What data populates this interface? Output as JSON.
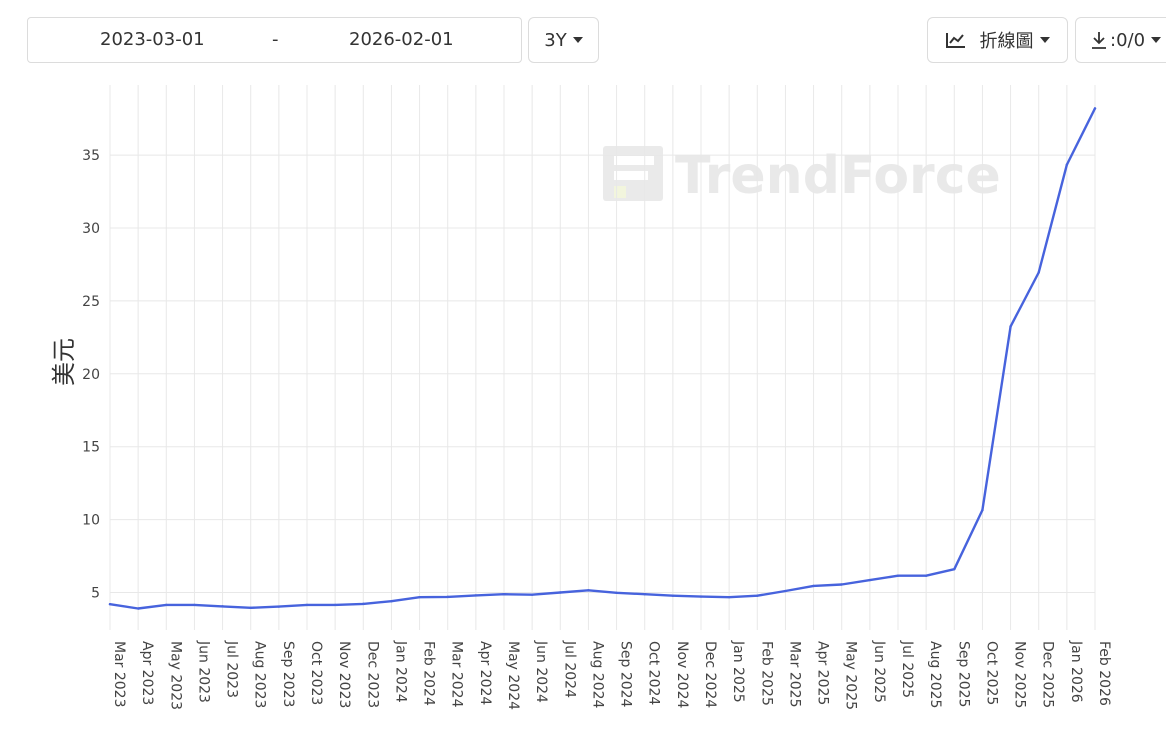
{
  "toolbar": {
    "start_date": "2023-03-01",
    "separator": "-",
    "end_date": "2026-02-01",
    "range_label": "3Y",
    "chart_type_label": "折線圖",
    "download_label": ":0/0",
    "icons": {
      "chart": "line-chart-icon",
      "download": "download-icon",
      "caret": "caret-down-icon"
    }
  },
  "watermark": {
    "text": "TrendForce",
    "icon": "trendforce-logo"
  },
  "colors": {
    "line": "#4763dd",
    "grid": "#e8e8e8",
    "watermark": "#e9e9e9"
  },
  "chart_data": {
    "type": "line",
    "title": "",
    "xlabel": "",
    "ylabel": "美元",
    "ylim": [
      2.5,
      39
    ],
    "yticks": [
      5,
      10,
      15,
      20,
      25,
      30,
      35
    ],
    "grid": true,
    "categories": [
      "Mar 2023",
      "Apr 2023",
      "May 2023",
      "Jun 2023",
      "Jul 2023",
      "Aug 2023",
      "Sep 2023",
      "Oct 2023",
      "Nov 2023",
      "Dec 2023",
      "Jan 2024",
      "Feb 2024",
      "Mar 2024",
      "Apr 2024",
      "May 2024",
      "Jun 2024",
      "Jul 2024",
      "Aug 2024",
      "Sep 2024",
      "Oct 2024",
      "Nov 2024",
      "Dec 2024",
      "Jan 2025",
      "Feb 2025",
      "Mar 2025",
      "Apr 2025",
      "May 2025",
      "Jun 2025",
      "Jul 2025",
      "Aug 2025",
      "Sep 2025",
      "Oct 2025",
      "Nov 2025",
      "Dec 2025",
      "Jan 2026",
      "Feb 2026"
    ],
    "series": [
      {
        "values": [
          4.2,
          3.9,
          4.15,
          4.15,
          4.05,
          3.95,
          4.03,
          4.15,
          4.15,
          4.22,
          4.4,
          4.68,
          4.7,
          4.8,
          4.88,
          4.85,
          5.0,
          5.15,
          4.98,
          4.88,
          4.78,
          4.72,
          4.68,
          4.78,
          5.1,
          5.45,
          5.55,
          5.85,
          6.15,
          6.15,
          6.6,
          10.65,
          23.25,
          26.95,
          34.35,
          38.2
        ]
      }
    ]
  }
}
